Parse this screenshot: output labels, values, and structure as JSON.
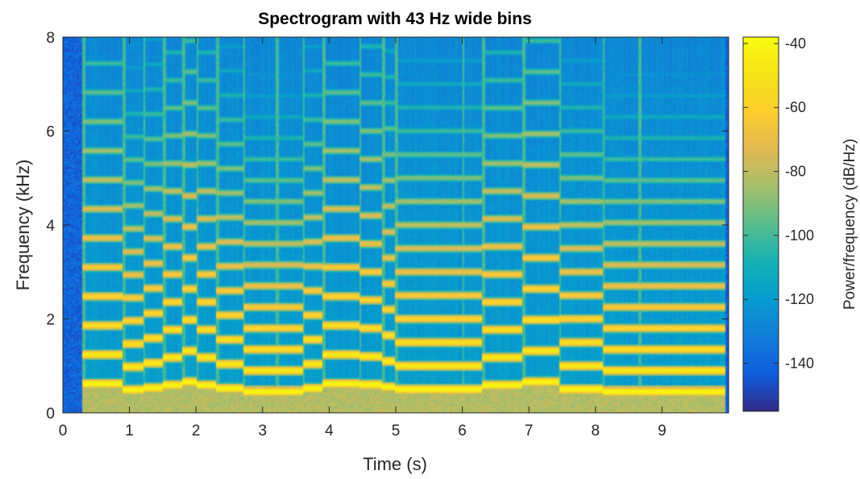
{
  "chart_data": {
    "type": "heatmap",
    "title": "Spectrogram with 43 Hz wide bins",
    "xlabel": "Time (s)",
    "ylabel": "Frequency (kHz)",
    "colorbar_label": "Power/frequency (dB/Hz)",
    "xlim": [
      0,
      10
    ],
    "ylim": [
      0,
      8
    ],
    "clim": [
      -155,
      -38
    ],
    "x_ticks": [
      0,
      1,
      2,
      3,
      4,
      5,
      6,
      7,
      8,
      9
    ],
    "y_ticks": [
      0,
      2,
      4,
      6,
      8
    ],
    "colorbar_ticks": [
      -40,
      -60,
      -80,
      -100,
      -120,
      -140
    ],
    "colormap": "parula",
    "background_level_db": -118,
    "silence_level_db": -140,
    "silence_intervals": [
      [
        0,
        0.3
      ]
    ],
    "notes": [
      {
        "start": 0.3,
        "end": 0.9,
        "f0_khz": 0.62
      },
      {
        "start": 0.9,
        "end": 1.2,
        "f0_khz": 0.49
      },
      {
        "start": 1.2,
        "end": 1.5,
        "f0_khz": 0.53
      },
      {
        "start": 1.5,
        "end": 1.8,
        "f0_khz": 0.59
      },
      {
        "start": 1.8,
        "end": 2.0,
        "f0_khz": 0.66
      },
      {
        "start": 2.0,
        "end": 2.3,
        "f0_khz": 0.59
      },
      {
        "start": 2.3,
        "end": 2.7,
        "f0_khz": 0.52
      },
      {
        "start": 2.7,
        "end": 3.2,
        "f0_khz": 0.45
      },
      {
        "start": 3.2,
        "end": 3.6,
        "f0_khz": 0.45
      },
      {
        "start": 3.6,
        "end": 3.9,
        "f0_khz": 0.52
      },
      {
        "start": 3.9,
        "end": 4.45,
        "f0_khz": 0.62
      },
      {
        "start": 4.45,
        "end": 4.8,
        "f0_khz": 0.6
      },
      {
        "start": 4.8,
        "end": 5.0,
        "f0_khz": 0.55
      },
      {
        "start": 5.0,
        "end": 6.0,
        "f0_khz": 0.5
      },
      {
        "start": 6.0,
        "end": 6.3,
        "f0_khz": 0.5
      },
      {
        "start": 6.3,
        "end": 6.9,
        "f0_khz": 0.59
      },
      {
        "start": 6.9,
        "end": 7.45,
        "f0_khz": 0.66
      },
      {
        "start": 7.45,
        "end": 8.1,
        "f0_khz": 0.5
      },
      {
        "start": 8.1,
        "end": 8.65,
        "f0_khz": 0.45
      },
      {
        "start": 8.65,
        "end": 9.95,
        "f0_khz": 0.45
      }
    ]
  }
}
